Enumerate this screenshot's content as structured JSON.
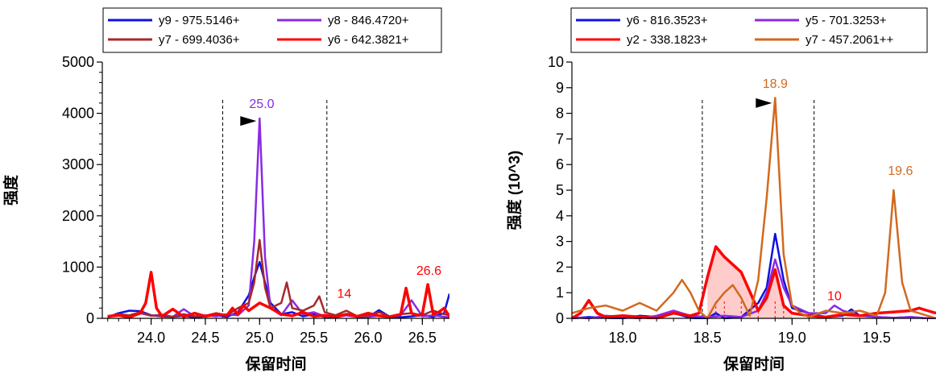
{
  "chart_data": [
    {
      "type": "line",
      "xlabel": "保留时间",
      "ylabel": "强度",
      "xlim": [
        23.55,
        26.75
      ],
      "ylim": [
        0,
        5000
      ],
      "xticks": [
        24.0,
        24.5,
        25.0,
        25.5,
        26.0,
        26.5
      ],
      "xtick_labels": [
        "24.0",
        "24.5",
        "25.0",
        "25.5",
        "26.0",
        "26.5"
      ],
      "yticks": [
        0,
        1000,
        2000,
        3000,
        4000,
        5000
      ],
      "ytick_labels": [
        "0",
        "1000",
        "2000",
        "3000",
        "4000",
        "5000"
      ],
      "boundaries": [
        24.66,
        25.62
      ],
      "peak_marker": 25.0,
      "legend": [
        {
          "label": "y9 - 975.5146+",
          "color": "#1010e0"
        },
        {
          "label": "y8 - 846.4720+",
          "color": "#8a2be2"
        },
        {
          "label": "y7 - 699.4036+",
          "color": "#a52a2a"
        },
        {
          "label": "y6 - 642.3821+",
          "color": "#ff0000"
        }
      ],
      "annotations": [
        {
          "text": "25.0",
          "x": 25.02,
          "y": 4100,
          "color": "#8a2be2"
        },
        {
          "text": "14",
          "x": 25.78,
          "y": 400,
          "color": "#ff0000"
        },
        {
          "text": "26.6",
          "x": 26.56,
          "y": 850,
          "color": "#ff0000"
        }
      ],
      "series": [
        {
          "name": "y9 - 975.5146+",
          "color": "#1010e0",
          "width": 2.5,
          "x": [
            23.6,
            23.7,
            23.8,
            23.9,
            24.0,
            24.1,
            24.2,
            24.3,
            24.4,
            24.5,
            24.6,
            24.7,
            24.8,
            24.9,
            24.95,
            25.0,
            25.05,
            25.1,
            25.2,
            25.3,
            25.4,
            25.5,
            25.6,
            25.7,
            25.8,
            25.9,
            26.0,
            26.1,
            26.2,
            26.3,
            26.4,
            26.5,
            26.6,
            26.7,
            26.75
          ],
          "y": [
            20,
            100,
            150,
            140,
            60,
            40,
            30,
            50,
            20,
            40,
            60,
            30,
            120,
            450,
            800,
            1100,
            700,
            300,
            80,
            120,
            40,
            80,
            30,
            20,
            60,
            30,
            20,
            160,
            30,
            20,
            40,
            60,
            30,
            100,
            480
          ]
        },
        {
          "name": "y8 - 846.4720+",
          "color": "#8a2be2",
          "width": 2.5,
          "x": [
            23.6,
            23.7,
            23.8,
            23.9,
            24.0,
            24.1,
            24.2,
            24.3,
            24.4,
            24.5,
            24.6,
            24.7,
            24.8,
            24.9,
            24.95,
            25.0,
            25.05,
            25.1,
            25.2,
            25.3,
            25.4,
            25.5,
            25.6,
            25.7,
            25.8,
            25.9,
            26.0,
            26.1,
            26.2,
            26.3,
            26.4,
            26.5,
            26.6,
            26.7,
            26.75
          ],
          "y": [
            30,
            60,
            40,
            100,
            50,
            70,
            30,
            180,
            40,
            60,
            40,
            80,
            60,
            250,
            1500,
            3900,
            1200,
            200,
            60,
            350,
            80,
            120,
            40,
            30,
            60,
            40,
            30,
            50,
            30,
            60,
            350,
            40,
            60,
            30,
            20
          ]
        },
        {
          "name": "y7 - 699.4036+",
          "color": "#a52a2a",
          "width": 2.5,
          "x": [
            23.6,
            23.7,
            23.8,
            23.9,
            24.0,
            24.1,
            24.2,
            24.3,
            24.4,
            24.5,
            24.6,
            24.7,
            24.8,
            24.9,
            24.95,
            25.0,
            25.05,
            25.1,
            25.2,
            25.25,
            25.3,
            25.4,
            25.5,
            25.55,
            25.6,
            25.7,
            25.8,
            25.9,
            26.0,
            26.1,
            26.2,
            26.3,
            26.4,
            26.5,
            26.6,
            26.7,
            26.75
          ],
          "y": [
            40,
            80,
            60,
            120,
            50,
            60,
            30,
            80,
            40,
            50,
            100,
            60,
            200,
            300,
            700,
            1530,
            600,
            200,
            300,
            700,
            200,
            150,
            250,
            430,
            120,
            60,
            150,
            40,
            50,
            120,
            40,
            80,
            100,
            60,
            150,
            80,
            60
          ]
        },
        {
          "name": "y6 - 642.3821+",
          "color": "#ff0000",
          "width": 3.5,
          "x": [
            23.6,
            23.7,
            23.8,
            23.9,
            23.95,
            24.0,
            24.05,
            24.1,
            24.2,
            24.3,
            24.4,
            24.5,
            24.6,
            24.7,
            24.75,
            24.8,
            24.85,
            24.9,
            25.0,
            25.1,
            25.2,
            25.3,
            25.4,
            25.5,
            25.6,
            25.7,
            25.8,
            25.9,
            26.0,
            26.1,
            26.2,
            26.3,
            26.35,
            26.4,
            26.45,
            26.5,
            26.55,
            26.6,
            26.65,
            26.7,
            26.75
          ],
          "y": [
            40,
            60,
            20,
            100,
            300,
            900,
            200,
            40,
            180,
            30,
            100,
            40,
            80,
            60,
            200,
            80,
            250,
            150,
            300,
            200,
            80,
            50,
            120,
            40,
            60,
            30,
            80,
            40,
            100,
            50,
            30,
            80,
            590,
            100,
            60,
            80,
            660,
            80,
            120,
            200,
            40
          ]
        }
      ]
    },
    {
      "type": "line",
      "xlabel": "保留时间",
      "ylabel": "强度 (10^3)",
      "xlim": [
        17.7,
        19.85
      ],
      "ylim": [
        0,
        10
      ],
      "xticks": [
        18.0,
        18.5,
        19.0,
        19.5
      ],
      "xtick_labels": [
        "18.0",
        "18.5",
        "19.0",
        "19.5"
      ],
      "yticks": [
        0,
        1,
        2,
        3,
        4,
        5,
        6,
        7,
        8,
        9,
        10
      ],
      "ytick_labels": [
        "0",
        "1",
        "2",
        "3",
        "4",
        "5",
        "6",
        "7",
        "8",
        "9",
        "10"
      ],
      "boundaries": [
        18.47,
        19.13
      ],
      "peak_marker": 18.9,
      "legend": [
        {
          "label": "y6 - 816.3523+",
          "color": "#1010e0"
        },
        {
          "label": "y5 - 701.3253+",
          "color": "#8a2be2"
        },
        {
          "label": "y2 - 338.1823+",
          "color": "#ff0000"
        },
        {
          "label": "y7 - 457.2061++",
          "color": "#d2691e"
        }
      ],
      "annotations": [
        {
          "text": "18.9",
          "x": 18.9,
          "y": 9.0,
          "color": "#d2691e"
        },
        {
          "text": "19.6",
          "x": 19.64,
          "y": 5.6,
          "color": "#d2691e"
        },
        {
          "text": "10",
          "x": 19.25,
          "y": 0.7,
          "color": "#ff0000"
        }
      ],
      "shaded": {
        "color": "#ff0000",
        "opacity": 0.2,
        "x": [
          18.5,
          18.55,
          18.6,
          18.7,
          18.8,
          18.9,
          18.95,
          19.0
        ],
        "y": [
          1.6,
          2.8,
          2.4,
          1.8,
          0.3,
          1.9,
          0.5,
          0.2
        ]
      },
      "series": [
        {
          "name": "y6 - 816.3523+",
          "color": "#1010e0",
          "width": 2.5,
          "x": [
            17.7,
            17.8,
            17.9,
            18.0,
            18.1,
            18.2,
            18.3,
            18.4,
            18.45,
            18.5,
            18.55,
            18.6,
            18.7,
            18.8,
            18.85,
            18.9,
            18.95,
            19.0,
            19.1,
            19.2,
            19.3,
            19.35,
            19.4,
            19.5,
            19.6,
            19.7,
            19.8,
            19.85
          ],
          "y": [
            0.0,
            0.05,
            0.02,
            0.0,
            0.1,
            0.05,
            0.2,
            0.02,
            0.0,
            0.0,
            0.2,
            0.0,
            0.05,
            0.6,
            1.2,
            3.3,
            1.5,
            0.4,
            0.2,
            0.05,
            0.1,
            0.35,
            0.1,
            0.05,
            0.02,
            0.05,
            0.0,
            0.0
          ]
        },
        {
          "name": "y5 - 701.3253+",
          "color": "#8a2be2",
          "width": 2.5,
          "x": [
            17.7,
            17.8,
            17.9,
            18.0,
            18.1,
            18.2,
            18.3,
            18.4,
            18.5,
            18.6,
            18.7,
            18.8,
            18.85,
            18.9,
            18.95,
            19.0,
            19.1,
            19.2,
            19.25,
            19.3,
            19.4,
            19.5,
            19.6,
            19.7,
            19.8,
            19.85
          ],
          "y": [
            0.05,
            0.0,
            0.1,
            0.05,
            0.0,
            0.1,
            0.3,
            0.1,
            0.05,
            0.1,
            0.05,
            0.3,
            1.0,
            2.3,
            1.2,
            0.5,
            0.2,
            0.2,
            0.5,
            0.3,
            0.1,
            0.05,
            0.02,
            0.05,
            0.0,
            0.0
          ]
        },
        {
          "name": "y2 - 338.1823+",
          "color": "#ff0000",
          "width": 3.5,
          "x": [
            17.7,
            17.75,
            17.8,
            17.85,
            17.9,
            18.0,
            18.1,
            18.2,
            18.3,
            18.4,
            18.45,
            18.5,
            18.55,
            18.6,
            18.7,
            18.8,
            18.85,
            18.9,
            18.95,
            19.0,
            19.1,
            19.2,
            19.3,
            19.4,
            19.5,
            19.6,
            19.7,
            19.75,
            19.8,
            19.85
          ],
          "y": [
            0.0,
            0.2,
            0.7,
            0.2,
            0.05,
            0.1,
            0.05,
            0.0,
            0.2,
            0.1,
            0.2,
            1.6,
            2.8,
            2.4,
            1.8,
            0.3,
            0.8,
            1.9,
            0.5,
            0.2,
            0.1,
            0.05,
            0.15,
            0.1,
            0.2,
            0.25,
            0.3,
            0.4,
            0.3,
            0.2
          ]
        },
        {
          "name": "y7 - 457.2061++",
          "color": "#d2691e",
          "width": 2.5,
          "x": [
            17.7,
            17.8,
            17.9,
            18.0,
            18.1,
            18.2,
            18.3,
            18.35,
            18.4,
            18.45,
            18.5,
            18.55,
            18.6,
            18.65,
            18.7,
            18.75,
            18.8,
            18.85,
            18.9,
            18.95,
            19.0,
            19.05,
            19.1,
            19.2,
            19.3,
            19.4,
            19.5,
            19.55,
            19.6,
            19.65,
            19.7,
            19.75,
            19.8,
            19.85
          ],
          "y": [
            0.2,
            0.4,
            0.5,
            0.3,
            0.6,
            0.3,
            1.0,
            1.5,
            1.0,
            0.3,
            0.0,
            0.6,
            1.0,
            1.3,
            0.8,
            0.1,
            1.5,
            4.7,
            8.6,
            2.5,
            0.5,
            0.2,
            0.05,
            0.3,
            0.2,
            0.3,
            0.1,
            1.0,
            5.0,
            1.4,
            0.3,
            0.2,
            0.1,
            0.0
          ]
        }
      ]
    }
  ]
}
